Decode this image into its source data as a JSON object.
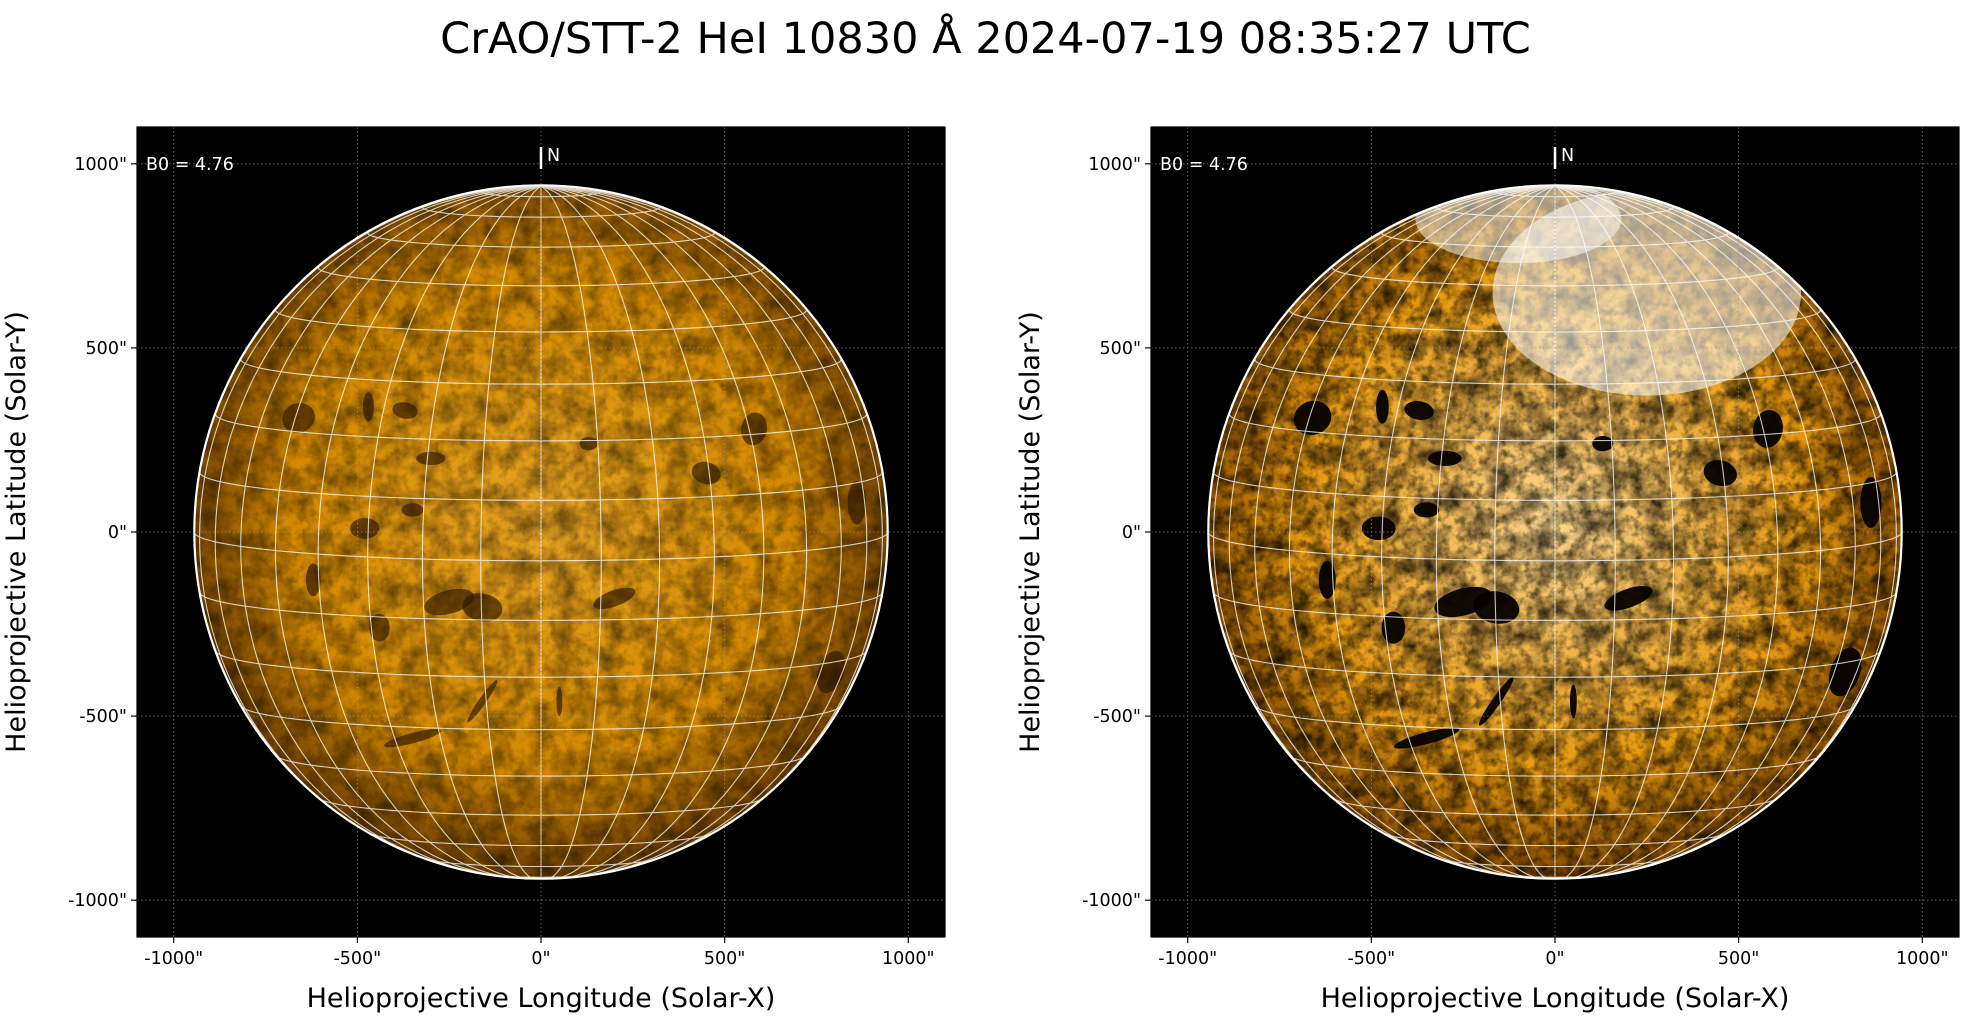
{
  "title": "CrAO/STT-2 HeI 10830 Å 2024-07-19 08:35:27 UTC",
  "panels": [
    {
      "id": "left",
      "display": "standard",
      "xlabel": "Helioprojective Longitude (Solar-X)",
      "ylabel": "Helioprojective Latitude (Solar-Y)",
      "b0_label": "B0 = 4.76",
      "north_label": "N"
    },
    {
      "id": "right",
      "display": "enhanced",
      "xlabel": "Helioprojective Longitude (Solar-X)",
      "ylabel": "Helioprojective Latitude (Solar-Y)",
      "b0_label": "B0 = 4.76",
      "north_label": "N"
    }
  ],
  "axes": {
    "x_ticks": [
      "-1000\"",
      "-500\"",
      "0\"",
      "500\"",
      "1000\""
    ],
    "y_ticks": [
      "1000\"",
      "500\"",
      "0\"",
      "-500\"",
      "-1000\""
    ],
    "x_tick_values": [
      -1000,
      -500,
      0,
      500,
      1000
    ],
    "y_tick_values": [
      1000,
      500,
      0,
      -500,
      -1000
    ],
    "range_arcsec": [
      -1100,
      1100
    ],
    "solar_radius_arcsec": 944,
    "b0_deg": 4.76,
    "grid_spacing_deg": 10,
    "coordinate_grid": true,
    "axis_grid": "dotted"
  },
  "colors": {
    "background": "#000000",
    "disk_standard": "#d48a00",
    "disk_enhanced": "#e89a10",
    "grid": "#ffffff",
    "limb": "#ffffff"
  }
}
